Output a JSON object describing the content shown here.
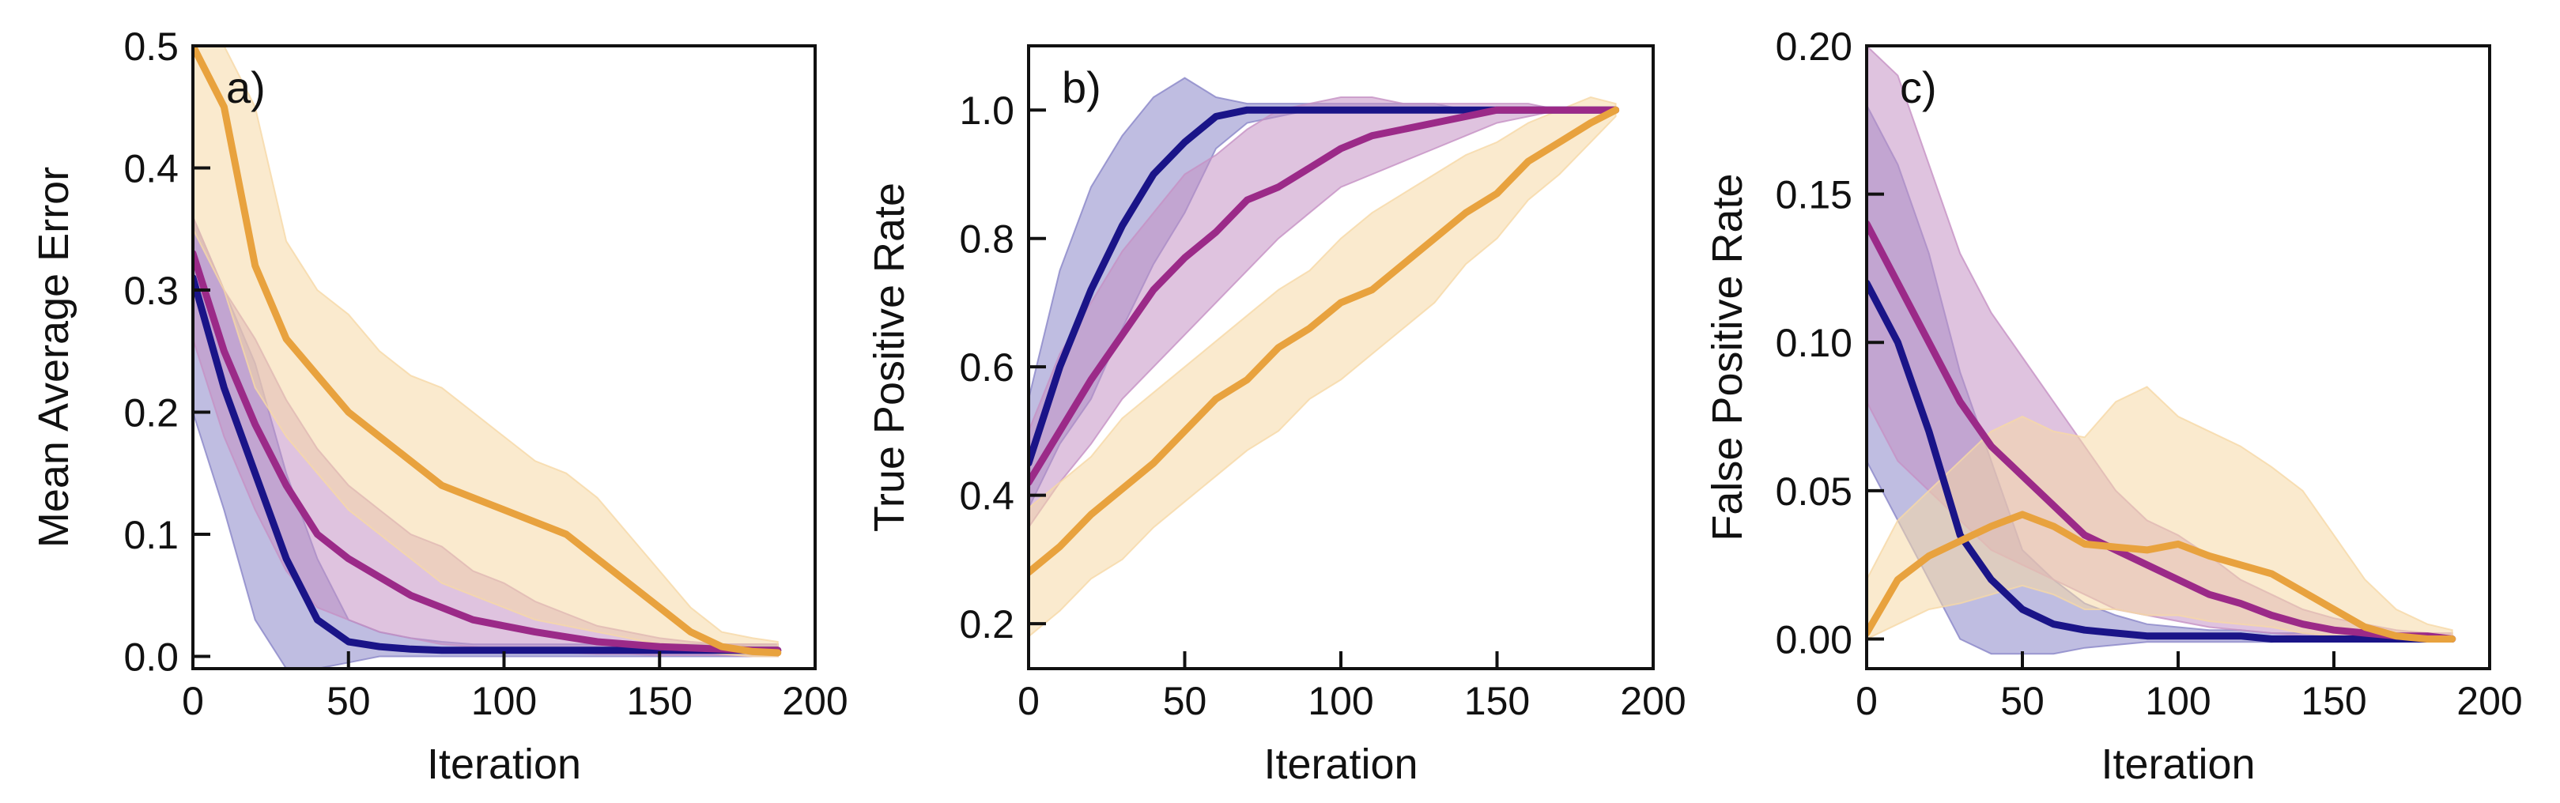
{
  "colors": {
    "navy": "#1a1488",
    "magenta": "#9b2a88",
    "orange": "#e8a23e",
    "navy_band": "#8a86c8",
    "magenta_band": "#c591c4",
    "orange_band": "#f6d8a6"
  },
  "chart_data": [
    {
      "type": "line",
      "panel_label": "a)",
      "xlabel": "Iteration",
      "ylabel": "Mean Average Error",
      "xlim": [
        0,
        200
      ],
      "ylim": [
        -0.01,
        0.5
      ],
      "xticks": [
        "0",
        "50",
        "100",
        "150",
        "200"
      ],
      "yticks": [
        "0.0",
        "0.1",
        "0.2",
        "0.3",
        "0.4",
        "0.5"
      ],
      "grid": false,
      "x": [
        0,
        10,
        20,
        30,
        40,
        50,
        60,
        70,
        80,
        90,
        100,
        110,
        120,
        130,
        140,
        150,
        160,
        170,
        180,
        188
      ],
      "series": [
        {
          "color": "navy",
          "values": [
            0.31,
            0.22,
            0.15,
            0.08,
            0.03,
            0.012,
            0.008,
            0.006,
            0.005,
            0.005,
            0.005,
            0.005,
            0.005,
            0.005,
            0.005,
            0.005,
            0.005,
            0.005,
            0.005,
            0.005
          ],
          "lower": [
            0.2,
            0.12,
            0.03,
            -0.01,
            -0.01,
            -0.005,
            0.0,
            0.0,
            0.0,
            0.0,
            0.0,
            0.0,
            0.0,
            0.0,
            0.0,
            0.0,
            0.0,
            0.0,
            0.0,
            0.0
          ],
          "upper": [
            0.36,
            0.3,
            0.24,
            0.15,
            0.08,
            0.03,
            0.02,
            0.015,
            0.012,
            0.01,
            0.01,
            0.01,
            0.01,
            0.01,
            0.01,
            0.01,
            0.01,
            0.01,
            0.01,
            0.01
          ]
        },
        {
          "color": "magenta",
          "values": [
            0.33,
            0.25,
            0.19,
            0.14,
            0.1,
            0.08,
            0.065,
            0.05,
            0.04,
            0.03,
            0.025,
            0.02,
            0.016,
            0.012,
            0.01,
            0.008,
            0.007,
            0.006,
            0.005,
            0.005
          ],
          "lower": [
            0.26,
            0.18,
            0.12,
            0.07,
            0.04,
            0.03,
            0.02,
            0.015,
            0.01,
            0.008,
            0.005,
            0.004,
            0.003,
            0.002,
            0.002,
            0.001,
            0.001,
            0.001,
            0.0,
            0.0
          ],
          "upper": [
            0.36,
            0.3,
            0.26,
            0.21,
            0.17,
            0.14,
            0.12,
            0.1,
            0.09,
            0.07,
            0.06,
            0.045,
            0.035,
            0.025,
            0.02,
            0.015,
            0.012,
            0.01,
            0.01,
            0.01
          ]
        },
        {
          "color": "orange",
          "values": [
            0.5,
            0.45,
            0.32,
            0.26,
            0.23,
            0.2,
            0.18,
            0.16,
            0.14,
            0.13,
            0.12,
            0.11,
            0.1,
            0.08,
            0.06,
            0.04,
            0.02,
            0.008,
            0.004,
            0.003
          ],
          "lower": [
            0.35,
            0.3,
            0.22,
            0.18,
            0.15,
            0.12,
            0.1,
            0.08,
            0.06,
            0.05,
            0.04,
            0.03,
            0.025,
            0.02,
            0.015,
            0.01,
            0.005,
            0.002,
            0.0,
            0.0
          ],
          "upper": [
            0.5,
            0.5,
            0.45,
            0.34,
            0.3,
            0.28,
            0.25,
            0.23,
            0.22,
            0.2,
            0.18,
            0.16,
            0.15,
            0.13,
            0.1,
            0.07,
            0.04,
            0.02,
            0.015,
            0.012
          ]
        }
      ]
    },
    {
      "type": "line",
      "panel_label": "b)",
      "xlabel": "Iteration",
      "ylabel": "True Positive Rate",
      "xlim": [
        0,
        200
      ],
      "ylim": [
        0.13,
        1.1
      ],
      "xticks": [
        "0",
        "50",
        "100",
        "150",
        "200"
      ],
      "yticks": [
        "0.2",
        "0.4",
        "0.6",
        "0.8",
        "1.0"
      ],
      "grid": false,
      "x": [
        0,
        10,
        20,
        30,
        40,
        50,
        60,
        70,
        80,
        90,
        100,
        110,
        120,
        130,
        140,
        150,
        160,
        170,
        180,
        188
      ],
      "series": [
        {
          "color": "navy",
          "values": [
            0.45,
            0.6,
            0.72,
            0.82,
            0.9,
            0.95,
            0.99,
            1.0,
            1.0,
            1.0,
            1.0,
            1.0,
            1.0,
            1.0,
            1.0,
            1.0,
            1.0,
            1.0,
            1.0,
            1.0
          ],
          "lower": [
            0.38,
            0.48,
            0.55,
            0.66,
            0.76,
            0.84,
            0.94,
            0.98,
            0.99,
            1.0,
            1.0,
            1.0,
            1.0,
            1.0,
            1.0,
            1.0,
            1.0,
            1.0,
            1.0,
            1.0
          ],
          "upper": [
            0.55,
            0.75,
            0.88,
            0.96,
            1.02,
            1.05,
            1.02,
            1.01,
            1.01,
            1.01,
            1.01,
            1.01,
            1.01,
            1.01,
            1.0,
            1.0,
            1.0,
            1.0,
            1.0,
            1.0
          ]
        },
        {
          "color": "magenta",
          "values": [
            0.42,
            0.5,
            0.58,
            0.65,
            0.72,
            0.77,
            0.81,
            0.86,
            0.88,
            0.91,
            0.94,
            0.96,
            0.97,
            0.98,
            0.99,
            1.0,
            1.0,
            1.0,
            1.0,
            1.0
          ],
          "lower": [
            0.35,
            0.42,
            0.48,
            0.55,
            0.6,
            0.65,
            0.7,
            0.75,
            0.8,
            0.84,
            0.88,
            0.9,
            0.92,
            0.94,
            0.96,
            0.98,
            0.99,
            1.0,
            1.0,
            1.0
          ],
          "upper": [
            0.5,
            0.62,
            0.7,
            0.78,
            0.84,
            0.9,
            0.93,
            0.97,
            1.0,
            1.01,
            1.02,
            1.02,
            1.01,
            1.01,
            1.01,
            1.01,
            1.01,
            1.0,
            1.0,
            1.0
          ]
        },
        {
          "color": "orange",
          "values": [
            0.28,
            0.32,
            0.37,
            0.41,
            0.45,
            0.5,
            0.55,
            0.58,
            0.63,
            0.66,
            0.7,
            0.72,
            0.76,
            0.8,
            0.84,
            0.87,
            0.92,
            0.95,
            0.98,
            1.0
          ],
          "lower": [
            0.18,
            0.22,
            0.27,
            0.3,
            0.35,
            0.39,
            0.43,
            0.47,
            0.5,
            0.55,
            0.58,
            0.62,
            0.66,
            0.7,
            0.76,
            0.8,
            0.86,
            0.9,
            0.95,
            0.99
          ],
          "upper": [
            0.38,
            0.42,
            0.46,
            0.52,
            0.56,
            0.6,
            0.64,
            0.68,
            0.72,
            0.75,
            0.8,
            0.84,
            0.87,
            0.9,
            0.93,
            0.95,
            0.98,
            1.0,
            1.02,
            1.01
          ]
        }
      ]
    },
    {
      "type": "line",
      "panel_label": "c)",
      "xlabel": "Iteration",
      "ylabel": "False Positive Rate",
      "xlim": [
        0,
        200
      ],
      "ylim": [
        -0.01,
        0.2
      ],
      "xticks": [
        "0",
        "50",
        "100",
        "150",
        "200"
      ],
      "yticks": [
        "0.00",
        "0.05",
        "0.10",
        "0.15",
        "0.20"
      ],
      "grid": false,
      "x": [
        0,
        10,
        20,
        30,
        40,
        50,
        60,
        70,
        80,
        90,
        100,
        110,
        120,
        130,
        140,
        150,
        160,
        170,
        180,
        188
      ],
      "series": [
        {
          "color": "navy",
          "values": [
            0.12,
            0.1,
            0.07,
            0.035,
            0.02,
            0.01,
            0.005,
            0.003,
            0.002,
            0.001,
            0.001,
            0.001,
            0.001,
            0.0,
            0.0,
            0.0,
            0.0,
            0.0,
            0.0,
            0.0
          ],
          "lower": [
            0.06,
            0.04,
            0.02,
            0.0,
            -0.005,
            -0.005,
            -0.005,
            -0.003,
            -0.002,
            -0.001,
            -0.001,
            -0.001,
            -0.001,
            -0.001,
            0.0,
            0.0,
            0.0,
            0.0,
            0.0,
            0.0
          ],
          "upper": [
            0.18,
            0.16,
            0.13,
            0.09,
            0.06,
            0.03,
            0.02,
            0.012,
            0.008,
            0.005,
            0.004,
            0.003,
            0.003,
            0.002,
            0.002,
            0.001,
            0.001,
            0.001,
            0.001,
            0.001
          ]
        },
        {
          "color": "magenta",
          "values": [
            0.14,
            0.12,
            0.1,
            0.08,
            0.065,
            0.055,
            0.045,
            0.035,
            0.03,
            0.025,
            0.02,
            0.015,
            0.012,
            0.008,
            0.005,
            0.003,
            0.002,
            0.001,
            0.001,
            0.0
          ],
          "lower": [
            0.08,
            0.06,
            0.05,
            0.04,
            0.03,
            0.025,
            0.02,
            0.015,
            0.01,
            0.008,
            0.006,
            0.004,
            0.003,
            0.002,
            0.001,
            0.0,
            0.0,
            0.0,
            0.0,
            0.0
          ],
          "upper": [
            0.2,
            0.19,
            0.16,
            0.13,
            0.11,
            0.095,
            0.08,
            0.065,
            0.05,
            0.04,
            0.035,
            0.028,
            0.02,
            0.015,
            0.01,
            0.007,
            0.005,
            0.003,
            0.002,
            0.002
          ]
        },
        {
          "color": "orange",
          "values": [
            0.002,
            0.02,
            0.028,
            0.033,
            0.038,
            0.042,
            0.038,
            0.032,
            0.031,
            0.03,
            0.032,
            0.028,
            0.025,
            0.022,
            0.016,
            0.01,
            0.004,
            0.001,
            0.0,
            0.0
          ],
          "lower": [
            0.0,
            0.005,
            0.01,
            0.012,
            0.015,
            0.018,
            0.015,
            0.01,
            0.01,
            0.008,
            0.008,
            0.006,
            0.005,
            0.004,
            0.002,
            0.001,
            0.0,
            0.0,
            0.0,
            0.0
          ],
          "upper": [
            0.02,
            0.04,
            0.05,
            0.06,
            0.07,
            0.075,
            0.07,
            0.068,
            0.08,
            0.085,
            0.075,
            0.07,
            0.065,
            0.058,
            0.05,
            0.035,
            0.02,
            0.01,
            0.005,
            0.003
          ]
        }
      ]
    }
  ]
}
